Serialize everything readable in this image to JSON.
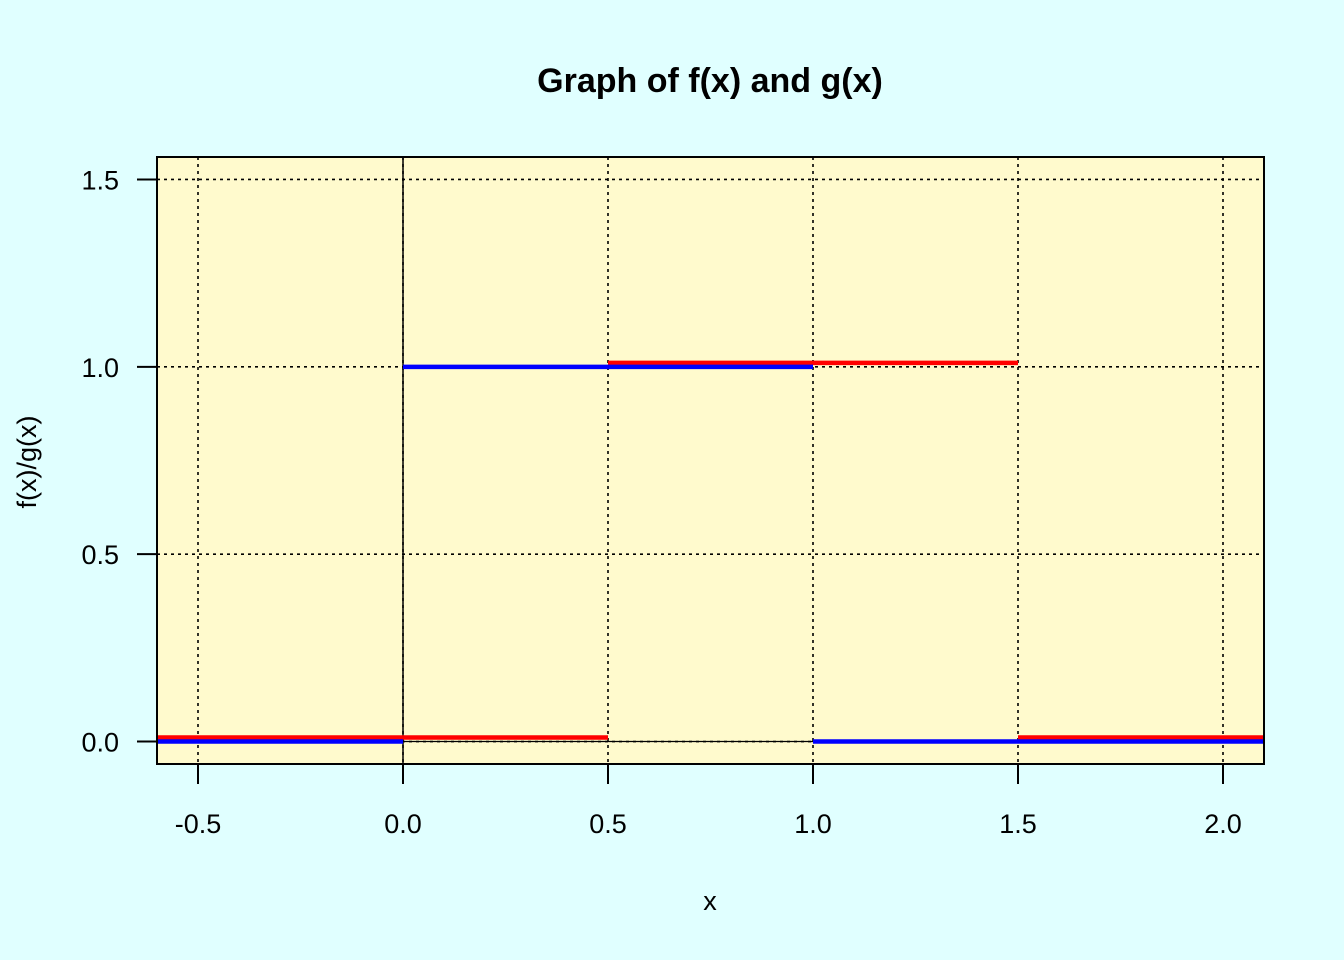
{
  "chart_data": {
    "type": "line",
    "title": "Graph of f(x) and g(x)",
    "xlabel": "x",
    "ylabel": "f(x)/g(x)",
    "xlim": [
      -0.6,
      2.1
    ],
    "ylim": [
      -0.06,
      1.56
    ],
    "x_ticks": [
      -0.5,
      0.0,
      0.5,
      1.0,
      1.5,
      2.0
    ],
    "x_tick_labels": [
      "-0.5",
      "0.0",
      "0.5",
      "1.0",
      "1.5",
      "2.0"
    ],
    "y_ticks": [
      0.0,
      0.5,
      1.0,
      1.5
    ],
    "y_tick_labels": [
      "0.0",
      "0.5",
      "1.0",
      "1.5"
    ],
    "grid": true,
    "grid_style": "dotted",
    "reference_lines": {
      "vertical_at_x": [
        0
      ],
      "horizontal_at_y": [
        0
      ]
    },
    "colors": {
      "page_background": "#e0ffff",
      "plot_background": "#fffacd",
      "f_series": "#ff0000",
      "g_series": "#0000ff",
      "grid": "#000000"
    },
    "series": [
      {
        "color": "#ff0000",
        "style": "step",
        "segments": [
          {
            "x": [
              -0.6,
              0.5
            ],
            "y": [
              0,
              0
            ]
          },
          {
            "x": [
              0.5,
              1.5
            ],
            "y": [
              1,
              1
            ]
          },
          {
            "x": [
              1.5,
              2.1
            ],
            "y": [
              0,
              0
            ]
          }
        ]
      },
      {
        "color": "#0000ff",
        "style": "step",
        "segments": [
          {
            "x": [
              -0.6,
              0.0
            ],
            "y": [
              0,
              0
            ]
          },
          {
            "x": [
              0.0,
              1.0
            ],
            "y": [
              1,
              1
            ]
          },
          {
            "x": [
              1.0,
              2.1
            ],
            "y": [
              0,
              0
            ]
          }
        ]
      }
    ]
  }
}
